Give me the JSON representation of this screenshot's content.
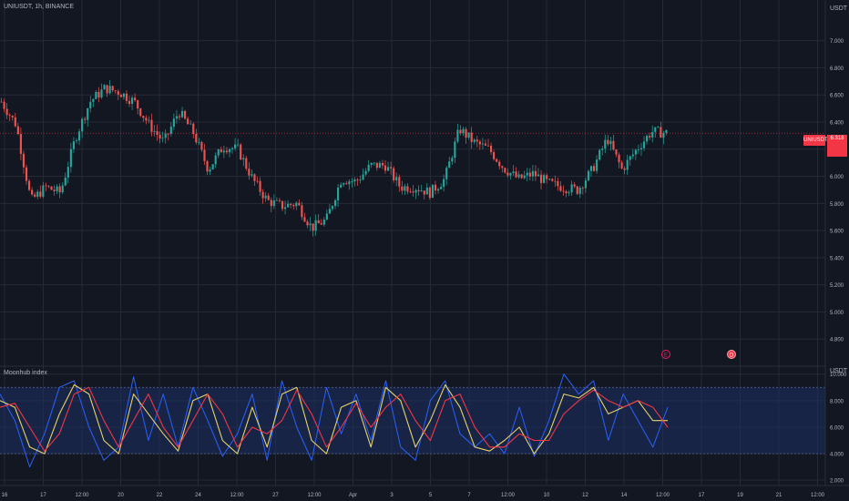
{
  "chart": {
    "title": "UNIUSDT, 1h, BINANCE",
    "price_unit": "USDT",
    "indicator_title": "Moonhub index",
    "indicator_unit": "USDT",
    "last_price_tag": "UNIUSDT",
    "last_price": "6.318",
    "event_flags": [
      "E",
      "D"
    ]
  },
  "chart_data": [
    {
      "type": "candlestick",
      "title": "UNIUSDT, 1h, BINANCE",
      "ylabel": "USDT",
      "ylim": [
        4.6,
        7.3
      ],
      "yticks": [
        "7.000",
        "6.800",
        "6.600",
        "6.400",
        "6.200",
        "6.000",
        "5.800",
        "5.600",
        "5.400",
        "5.200",
        "5.000",
        "4.800"
      ],
      "close_series": [
        6.55,
        6.38,
        5.82,
        5.92,
        5.88,
        6.28,
        6.55,
        6.65,
        6.62,
        6.55,
        6.38,
        6.25,
        6.48,
        6.32,
        6.05,
        6.22,
        6.2,
        5.98,
        5.82,
        5.78,
        5.8,
        5.62,
        5.68,
        5.98,
        5.96,
        6.08,
        6.08,
        5.92,
        5.92,
        5.88,
        5.98,
        6.35,
        6.25,
        6.2,
        6.06,
        5.98,
        6.02,
        5.95,
        5.92,
        5.9,
        6.05,
        6.28,
        6.05,
        6.2,
        6.33,
        6.32
      ]
    },
    {
      "type": "line",
      "title": "Moonhub index",
      "ylabel": "USDT",
      "ylim": [
        1.6,
        10.6
      ],
      "yticks": [
        "10.000",
        "8.000",
        "6.000",
        "4.000",
        "2.000"
      ],
      "band": [
        4.0,
        9.0
      ],
      "series": [
        {
          "color": "#2962ff",
          "values": [
            8.5,
            6.5,
            3.0,
            5.5,
            9.0,
            9.5,
            6.0,
            3.5,
            4.5,
            9.8,
            5.0,
            8.5,
            4.5,
            9.0,
            6.5,
            3.8,
            5.5,
            8.5,
            3.5,
            9.5,
            6.0,
            3.5,
            9.0,
            5.5,
            8.5,
            5.0,
            9.5,
            4.5,
            3.5,
            8.0,
            9.5,
            5.5,
            4.5,
            5.5,
            4.0,
            7.5,
            3.8,
            6.5,
            10.0,
            8.5,
            9.5,
            5.0,
            8.5,
            6.5,
            4.5,
            7.5
          ]
        },
        {
          "color": "#e6d36a",
          "values": [
            8.0,
            7.5,
            4.5,
            4.0,
            7.0,
            9.2,
            8.5,
            5.0,
            4.0,
            8.5,
            7.0,
            5.5,
            4.2,
            8.0,
            8.5,
            5.0,
            4.0,
            7.5,
            4.5,
            8.5,
            9.0,
            5.0,
            4.0,
            7.5,
            8.0,
            4.5,
            9.0,
            8.0,
            4.5,
            6.5,
            9.2,
            7.5,
            4.5,
            4.2,
            5.0,
            6.0,
            4.0,
            5.5,
            8.5,
            8.2,
            9.0,
            7.0,
            7.5,
            8.0,
            6.5,
            6.5
          ]
        },
        {
          "color": "#f23645",
          "values": [
            7.5,
            7.8,
            6.0,
            4.2,
            5.5,
            8.5,
            9.0,
            6.5,
            4.5,
            6.5,
            8.5,
            6.0,
            4.5,
            6.5,
            8.5,
            7.0,
            4.5,
            6.0,
            5.5,
            6.5,
            8.8,
            7.0,
            4.5,
            6.0,
            7.8,
            6.0,
            7.5,
            8.5,
            6.5,
            5.0,
            8.0,
            8.5,
            6.0,
            4.5,
            4.5,
            5.5,
            5.0,
            5.0,
            7.0,
            8.0,
            8.8,
            8.0,
            7.5,
            8.0,
            7.5,
            6.0
          ]
        }
      ]
    }
  ],
  "x_axis": {
    "labels": [
      "16",
      "17",
      "12:00",
      "20",
      "22",
      "24",
      "12:00",
      "27",
      "12:00",
      "Apr",
      "3",
      "5",
      "7",
      "12:00",
      "10",
      "12",
      "14",
      "12:00",
      "17",
      "19",
      "21",
      "12:00"
    ]
  },
  "colors": {
    "background": "#131722",
    "grid": "#252a36",
    "up": "#26a69a",
    "down": "#ef5350",
    "band": "#1e2f63",
    "band_line": "#4a5a8a"
  }
}
